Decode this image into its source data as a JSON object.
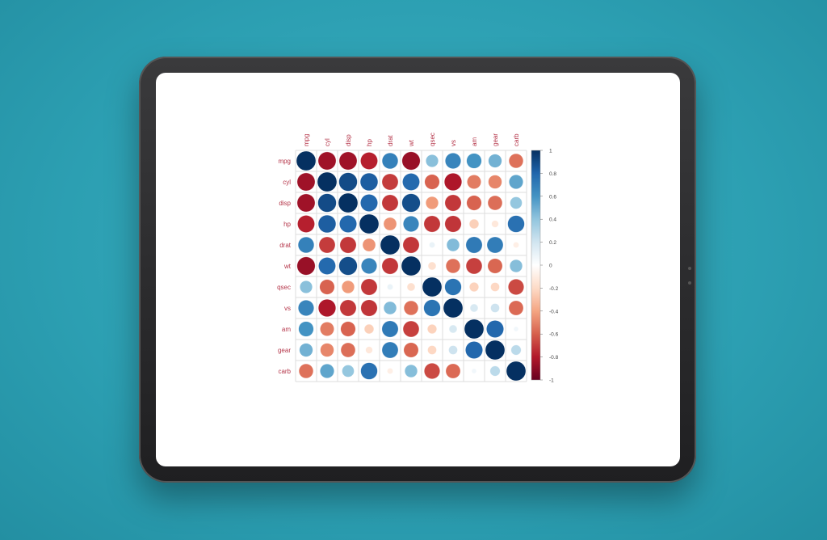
{
  "chart_data": {
    "type": "heatmap",
    "variables": [
      "mpg",
      "cyl",
      "disp",
      "hp",
      "drat",
      "wt",
      "qsec",
      "vs",
      "am",
      "gear",
      "carb"
    ],
    "matrix": [
      [
        1,
        -0.85,
        -0.85,
        -0.78,
        0.68,
        -0.87,
        0.42,
        0.66,
        0.6,
        0.48,
        -0.55
      ],
      [
        -0.85,
        1,
        0.9,
        0.83,
        -0.7,
        0.78,
        -0.59,
        -0.81,
        -0.52,
        -0.49,
        0.53
      ],
      [
        -0.85,
        0.9,
        1,
        0.79,
        -0.71,
        0.89,
        -0.43,
        -0.71,
        -0.59,
        -0.56,
        0.39
      ],
      [
        -0.78,
        0.83,
        0.79,
        1,
        -0.45,
        0.66,
        -0.71,
        -0.72,
        -0.24,
        -0.13,
        0.75
      ],
      [
        0.68,
        -0.7,
        -0.71,
        -0.45,
        1,
        -0.71,
        0.09,
        0.44,
        0.71,
        0.7,
        -0.09
      ],
      [
        -0.87,
        0.78,
        0.89,
        0.66,
        -0.71,
        1,
        -0.17,
        -0.55,
        -0.69,
        -0.58,
        0.43
      ],
      [
        0.42,
        -0.59,
        -0.43,
        -0.71,
        0.09,
        -0.17,
        1,
        0.74,
        -0.23,
        -0.21,
        -0.66
      ],
      [
        0.66,
        -0.81,
        -0.71,
        -0.72,
        0.44,
        -0.55,
        0.74,
        1,
        0.17,
        0.21,
        -0.57
      ],
      [
        0.6,
        -0.52,
        -0.59,
        -0.24,
        0.71,
        -0.69,
        -0.23,
        0.17,
        1,
        0.79,
        0.06
      ],
      [
        0.48,
        -0.49,
        -0.56,
        -0.13,
        0.7,
        -0.58,
        -0.21,
        0.21,
        0.79,
        1,
        0.27
      ],
      [
        -0.55,
        0.53,
        0.39,
        0.75,
        -0.09,
        0.43,
        -0.66,
        -0.57,
        0.06,
        0.27,
        1
      ]
    ],
    "glyph": "circle",
    "value_range": [
      -1,
      1
    ],
    "colorbar_ticks": [
      "1",
      "0.8",
      "0.6",
      "0.4",
      "0.2",
      "0",
      "-0.2",
      "-0.4",
      "-0.6",
      "-0.8",
      "-1"
    ],
    "colorbar_placement": "right",
    "palette": [
      "#67001F",
      "#B2182B",
      "#D6604D",
      "#F4A582",
      "#FDDBC7",
      "#FFFFFF",
      "#D1E5F0",
      "#92C5DE",
      "#4393C3",
      "#2166AC",
      "#053061"
    ],
    "label_color": "#B5364A",
    "grid": true
  }
}
